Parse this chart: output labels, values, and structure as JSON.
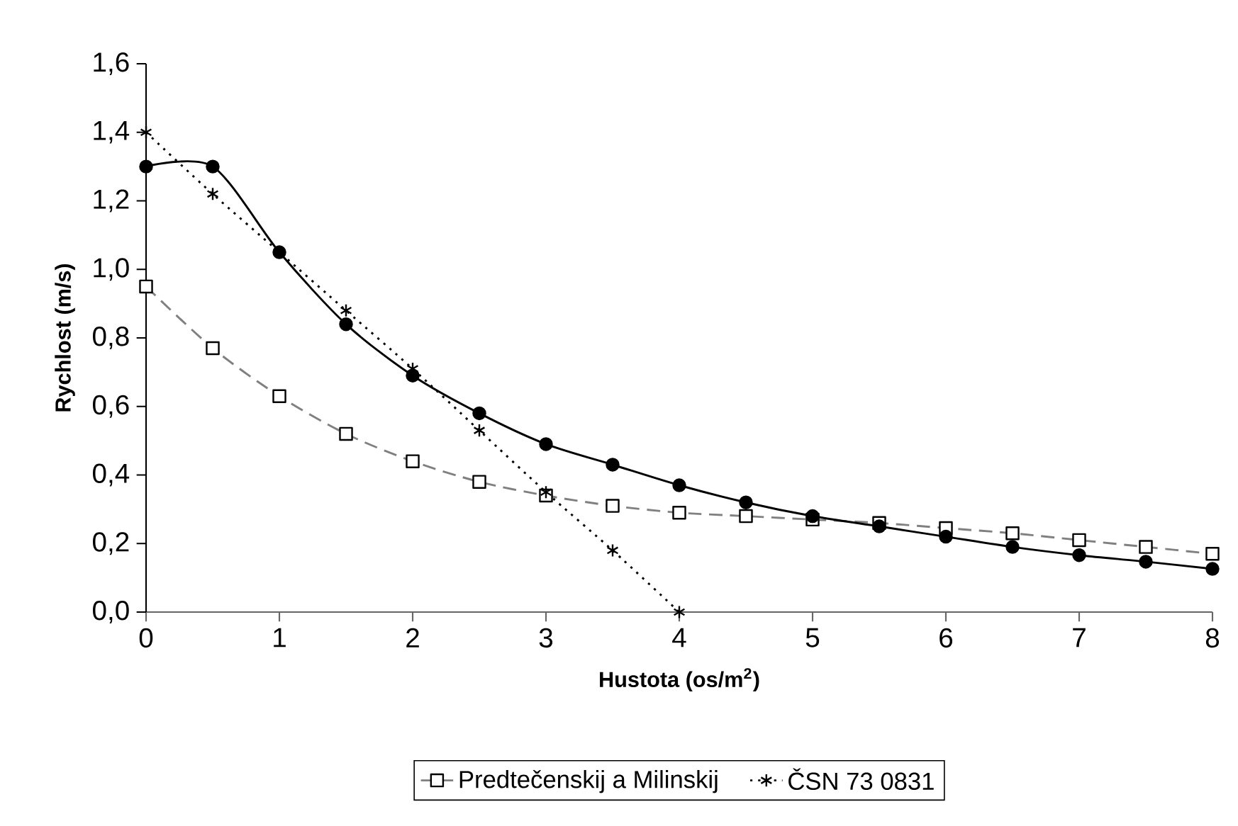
{
  "chart_data": {
    "type": "line",
    "xlabel": "Hustota (os/m$^{2}$)",
    "ylabel": "Rychlost (m/s)",
    "x": [
      0,
      0.5,
      1,
      1.5,
      2,
      2.5,
      3,
      3.5,
      4,
      4.5,
      5,
      5.5,
      6,
      6.5,
      7,
      7.5,
      8
    ],
    "series": [
      {
        "name": "Predtečenskij a Milinskij",
        "color": "#808080",
        "marker": "square",
        "line_style": "dashed",
        "values": [
          0.95,
          0.77,
          0.63,
          0.52,
          0.44,
          0.38,
          0.34,
          0.31,
          0.29,
          0.28,
          0.27,
          0.26,
          0.245,
          0.23,
          0.21,
          0.19,
          0.17
        ]
      },
      {
        "color": "#000000",
        "marker": "circle",
        "line_style": "solid",
        "values": [
          1.3,
          1.3,
          1.05,
          0.84,
          0.69,
          0.58,
          0.49,
          0.43,
          0.37,
          0.32,
          0.28,
          0.25,
          0.22,
          0.19,
          0.166,
          0.147,
          0.126
        ]
      },
      {
        "name": "ČSN 73 0831",
        "color": "#000000",
        "marker": "cross",
        "line_style": "dotted",
        "x": [
          0,
          0.5,
          1,
          1.5,
          2,
          2.5,
          3,
          3.5,
          4
        ],
        "values": [
          1.4,
          1.22,
          1.05,
          0.88,
          0.71,
          0.53,
          0.35,
          0.18,
          0.0
        ]
      }
    ],
    "xlim": [
      0,
      8
    ],
    "xticks": [
      0,
      1,
      2,
      3,
      4,
      5,
      6,
      7,
      8
    ],
    "ylim": [
      0,
      1.6
    ],
    "yticks": [
      {
        "value": 0,
        "label": "0,0"
      },
      {
        "value": 0.2,
        "label": "0,2"
      },
      {
        "value": 0.4,
        "label": "0,4"
      },
      {
        "value": 0.6,
        "label": "0,6"
      },
      {
        "value": 0.8,
        "label": "0,8"
      },
      {
        "value": 1.0,
        "label": "1,0"
      },
      {
        "value": 1.2,
        "label": "1,2"
      },
      {
        "value": 1.4,
        "label": "1,4"
      },
      {
        "value": 1.6,
        "label": "1,6"
      }
    ],
    "grid": false,
    "legend": "bottom"
  }
}
